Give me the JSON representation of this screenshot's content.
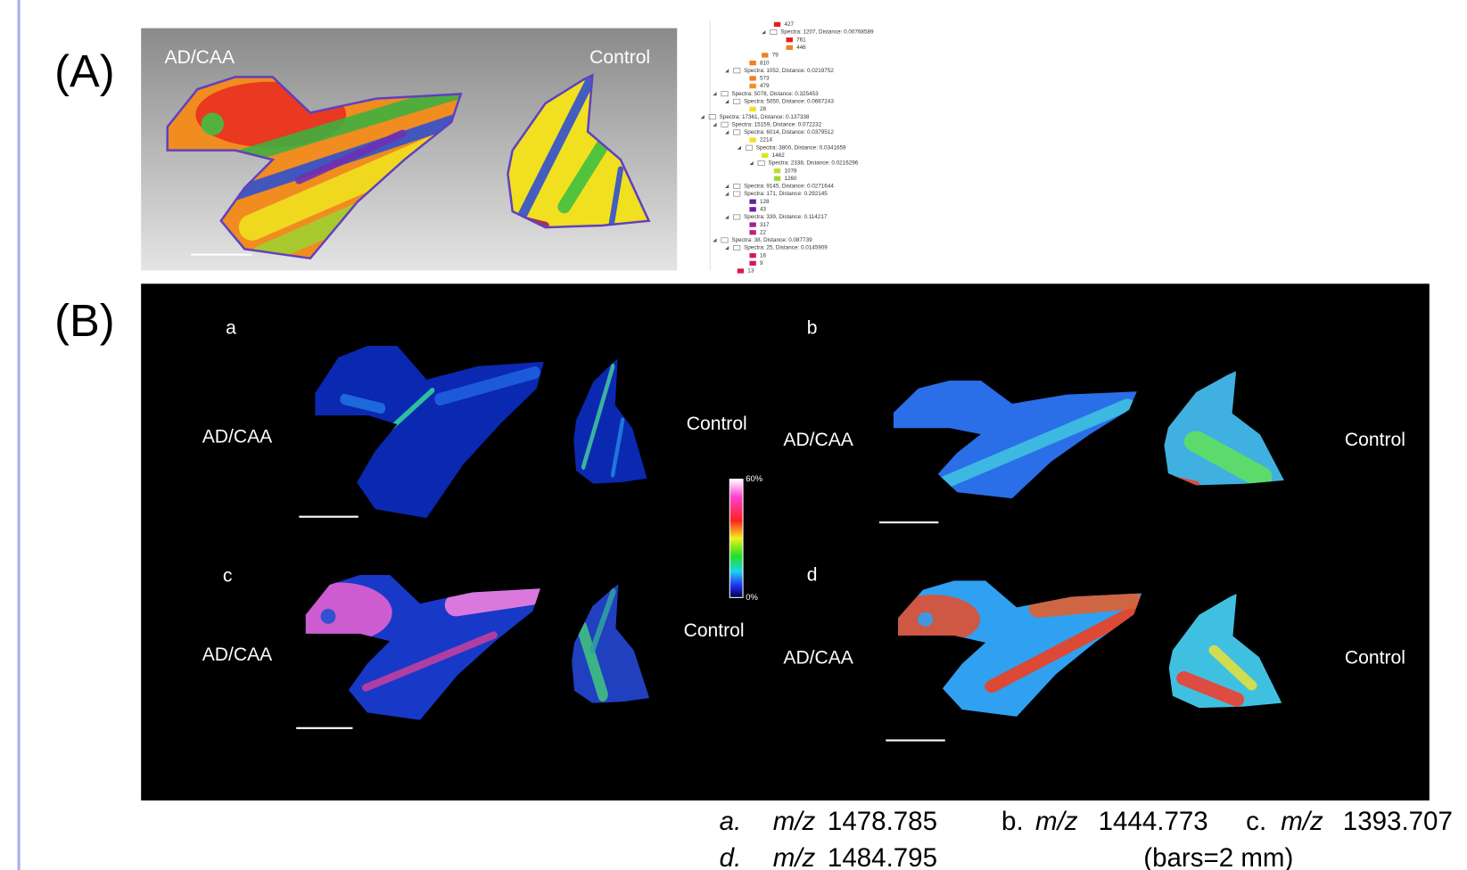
{
  "panel_a": {
    "label": "(A)",
    "left_label": "AD/CAA",
    "right_label": "Control",
    "tree": [
      {
        "text": "427",
        "color": "#e0201c"
      },
      {
        "text": "Spectra: 1207, Distance: 0.00768589"
      },
      {
        "text": "761",
        "color": "#e0201c"
      },
      {
        "text": "446",
        "color": "#f08020"
      },
      {
        "text": "79",
        "color": "#f08020"
      },
      {
        "text": "810",
        "color": "#f08020"
      },
      {
        "text": "Spectra: 1052, Distance: 0.0219752"
      },
      {
        "text": "573",
        "color": "#f08020"
      },
      {
        "text": "479",
        "color": "#f09020"
      },
      {
        "text": "Spectra: 5078, Distance: 0.325453"
      },
      {
        "text": "Spectra: 5050, Distance: 0.0667243"
      },
      {
        "text": "28",
        "color": "#f0e020"
      },
      {
        "text": "Spectra: 17361, Distance: 0.137338"
      },
      {
        "text": "Spectra: 15159, Distance: 0.072232"
      },
      {
        "text": "Spectra: 6014, Distance: 0.0379512"
      },
      {
        "text": "2214",
        "color": "#f0e020"
      },
      {
        "text": "Spectra: 3800, Distance: 0.0341659"
      },
      {
        "text": "1462",
        "color": "#d8e820"
      },
      {
        "text": "Spectra: 2338, Distance: 0.0216296"
      },
      {
        "text": "1078",
        "color": "#b8e030"
      },
      {
        "text": "1260",
        "color": "#a0d830"
      },
      {
        "text": "Spectra: 9145, Distance: 0.0271644"
      },
      {
        "text": "Spectra: 171, Distance: 0.292145"
      },
      {
        "text": "128",
        "color": "#6020a0"
      },
      {
        "text": "43",
        "color": "#7020a0"
      },
      {
        "text": "Spectra: 339, Distance: 0.114217"
      },
      {
        "text": "317",
        "color": "#a02090"
      },
      {
        "text": "22",
        "color": "#c02080"
      },
      {
        "text": "Spectra: 38, Distance: 0.087739"
      },
      {
        "text": "Spectra: 25, Distance: 0.0145909"
      },
      {
        "text": "16",
        "color": "#d01870"
      },
      {
        "text": "9",
        "color": "#d01860"
      },
      {
        "text": "13",
        "color": "#e01840"
      }
    ]
  },
  "panel_b": {
    "label": "(B)",
    "colorbar": {
      "max_label": "60%",
      "min_label": "0%"
    },
    "subpanels": [
      {
        "letter": "a",
        "left_label": "AD/CAA",
        "right_label": "Control"
      },
      {
        "letter": "b",
        "left_label": "AD/CAA",
        "right_label": "Control"
      },
      {
        "letter": "c",
        "left_label": "AD/CAA",
        "right_label": "Control"
      },
      {
        "letter": "d",
        "left_label": "AD/CAA",
        "right_label": "Control"
      }
    ]
  },
  "caption": {
    "items": [
      {
        "label": "a.",
        "mz": "m/z",
        "value": "1478.785"
      },
      {
        "label": "b.",
        "mz": "m/z",
        "value": "1444.773"
      },
      {
        "label": "c.",
        "mz": "m/z",
        "value": "1393.707"
      },
      {
        "label": "d.",
        "mz": "m/z",
        "value": "1484.795"
      }
    ],
    "note": "(bars=2 mm)"
  }
}
